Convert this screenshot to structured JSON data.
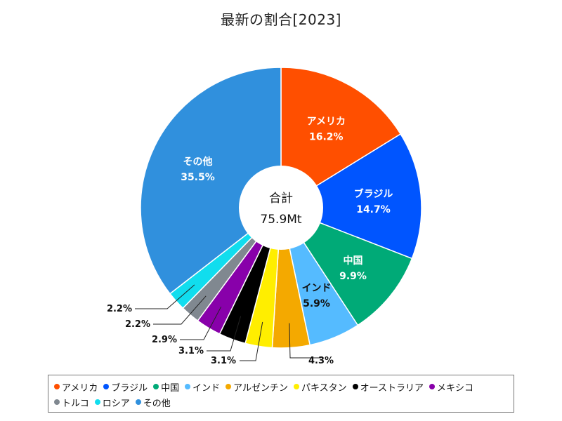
{
  "chart_data": {
    "type": "pie",
    "title": "最新の割合[2023]",
    "center_label": "合計",
    "center_value": "75.9Mt",
    "categories": [
      "アメリカ",
      "ブラジル",
      "中国",
      "インド",
      "アルゼンチン",
      "パキスタン",
      "オーストラリア",
      "メキシコ",
      "トルコ",
      "ロシア",
      "その他"
    ],
    "values": [
      16.2,
      14.7,
      9.9,
      5.9,
      4.3,
      3.1,
      3.1,
      2.9,
      2.2,
      2.2,
      35.5
    ],
    "value_labels": [
      "16.2%",
      "14.7%",
      "9.9%",
      "5.9%",
      "4.3%",
      "3.1%",
      "3.1%",
      "2.9%",
      "2.2%",
      "2.2%",
      "35.5%"
    ],
    "inside_label_names": [
      "アメリカ",
      "ブラジル",
      "中国",
      "インド",
      "",
      "",
      "",
      "",
      "",
      "",
      "その他"
    ],
    "colors": [
      "#FF4F00",
      "#0055FF",
      "#00AA77",
      "#55BBFF",
      "#F4A900",
      "#FFEE00",
      "#000000",
      "#8800AA",
      "#808890",
      "#11DDEE",
      "#3090DD"
    ],
    "legend_position": "bottom"
  }
}
